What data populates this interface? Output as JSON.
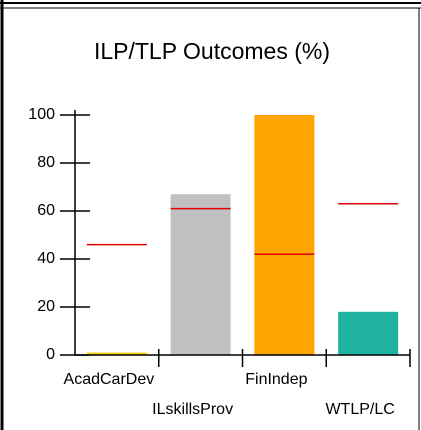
{
  "chart_data": {
    "type": "bar",
    "title": "ILP/TLP Outcomes (%)",
    "categories": [
      "AcadCarDev",
      "ILskillsProv",
      "FinIndep",
      "WTLP/LC"
    ],
    "series": [
      {
        "color": "#f0d000",
        "values": [
          1,
          67,
          100,
          18
        ],
        "colors": [
          "#f0d000",
          "#c0c0c0",
          "#ffa500",
          "#20b2a0"
        ]
      },
      {
        "color": "#e00000",
        "values": [
          46,
          61,
          42,
          63
        ],
        "style": "marker"
      }
    ],
    "ylim": [
      0,
      100
    ],
    "yticks": [
      0,
      20,
      40,
      60,
      80,
      100
    ]
  }
}
